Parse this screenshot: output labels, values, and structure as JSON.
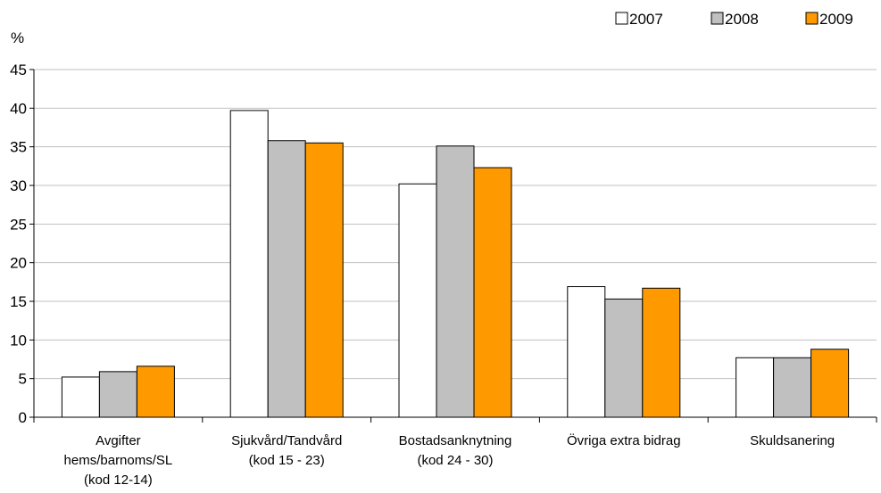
{
  "chart_data": {
    "type": "bar",
    "ylabel": "%",
    "ylim": [
      0,
      45
    ],
    "yticks": [
      "0",
      "5",
      "10",
      "15",
      "20",
      "25",
      "30",
      "35",
      "40",
      "45"
    ],
    "grid": true,
    "legend_position": "top-right",
    "categories": [
      [
        "Avgifter",
        "hems/barnoms/SL",
        "(kod 12-14)"
      ],
      [
        "Sjukvård/Tandvård",
        "(kod 15 - 23)"
      ],
      [
        "Bostadsanknytning",
        "(kod 24 - 30)"
      ],
      [
        "Övriga extra bidrag"
      ],
      [
        "Skuldsanering"
      ]
    ],
    "series": [
      {
        "name": "2007",
        "color": "#ffffff",
        "values": [
          5.2,
          39.7,
          30.2,
          16.9,
          7.7
        ]
      },
      {
        "name": "2008",
        "color": "#c0c0c0",
        "values": [
          5.9,
          35.8,
          35.1,
          15.3,
          7.7
        ]
      },
      {
        "name": "2009",
        "color": "#ff9900",
        "values": [
          6.6,
          35.5,
          32.3,
          16.7,
          8.8
        ]
      }
    ]
  }
}
